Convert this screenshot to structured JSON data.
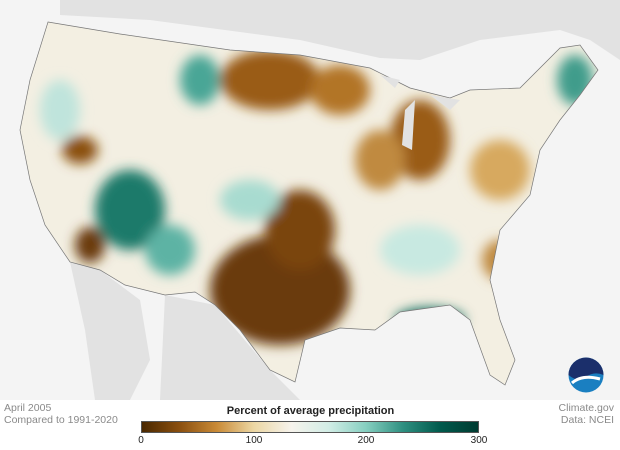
{
  "caption": {
    "month": "April 2005",
    "baseline": "Compared to 1991-2020"
  },
  "credit": {
    "source": "Climate.gov",
    "data": "Data: NCEI"
  },
  "legend": {
    "title": "Percent of average precipitation",
    "ticks": [
      "0",
      "100",
      "200",
      "300"
    ],
    "range": [
      0,
      300
    ],
    "colors": [
      "#4a2800",
      "#8a4f0f",
      "#c98a36",
      "#ecd7a4",
      "#f6f3ec",
      "#d2ede6",
      "#86cfc0",
      "#2e8f80",
      "#00594c",
      "#003b31"
    ]
  },
  "logo": {
    "text": "NOAA"
  }
}
